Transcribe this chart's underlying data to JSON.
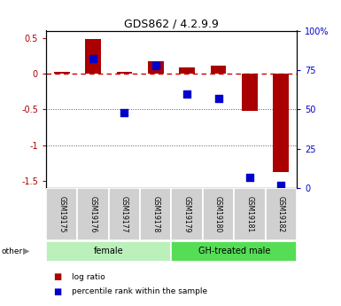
{
  "title": "GDS862 / 4.2.9.9",
  "samples": [
    "GSM19175",
    "GSM19176",
    "GSM19177",
    "GSM19178",
    "GSM19179",
    "GSM19180",
    "GSM19181",
    "GSM19182"
  ],
  "log_ratio": [
    0.02,
    0.48,
    0.03,
    0.17,
    0.08,
    0.11,
    -0.52,
    -1.37
  ],
  "percentile_rank": [
    null,
    82,
    48,
    78,
    60,
    57,
    7,
    2
  ],
  "groups": [
    {
      "label": "female",
      "start": 0,
      "end": 4,
      "color": "#bbf0bb"
    },
    {
      "label": "GH-treated male",
      "start": 4,
      "end": 8,
      "color": "#55dd55"
    }
  ],
  "ylim_left": [
    -1.6,
    0.6
  ],
  "ylim_right": [
    0,
    100
  ],
  "bar_color": "#aa0000",
  "dot_color": "#0000cc",
  "zero_line_color": "#cc0000",
  "grid_color": "#555555",
  "bar_width": 0.5,
  "dot_size": 30,
  "legend_items": [
    {
      "label": "log ratio",
      "color": "#aa0000"
    },
    {
      "label": "percentile rank within the sample",
      "color": "#0000cc"
    }
  ]
}
